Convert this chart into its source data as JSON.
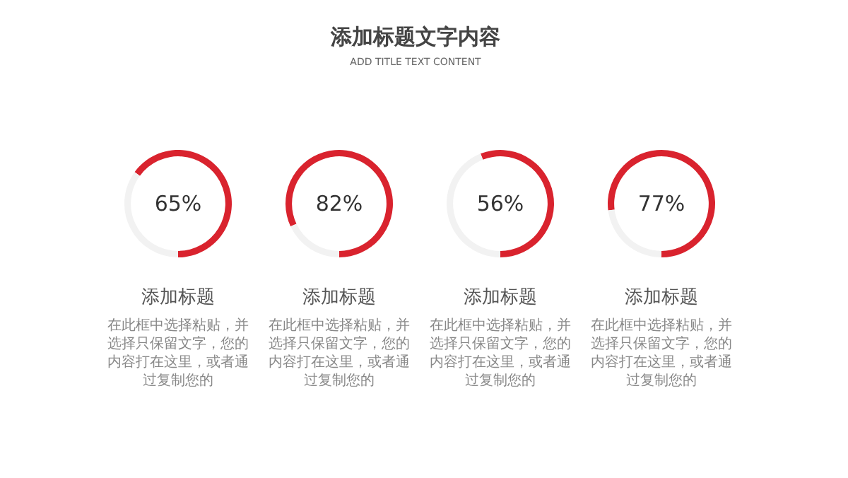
{
  "chart_data": [
    {
      "type": "other",
      "title": "添加标题文字内容",
      "subtitle": "ADD TITLE TEXT CONTENT"
    },
    {
      "type": "donut",
      "categories": [
        null,
        null
      ],
      "values": [
        65,
        35
      ],
      "colors": [
        "#d9232e",
        "#f2f2f2"
      ],
      "value_labels": [
        "65%",
        null
      ],
      "title": "添加标题",
      "annotations": [
        "在此框中选择粘贴，并选择只保留文字，您的内容打在这里，或者通过复制您的"
      ]
    },
    {
      "type": "donut",
      "categories": [
        null,
        null
      ],
      "values": [
        82,
        18
      ],
      "colors": [
        "#d9232e",
        "#f2f2f2"
      ],
      "value_labels": [
        "82%",
        null
      ],
      "title": "添加标题",
      "annotations": [
        "在此框中选择粘贴，并选择只保留文字，您的内容打在这里，或者通过复制您的"
      ]
    },
    {
      "type": "donut",
      "categories": [
        null,
        null
      ],
      "values": [
        56,
        44
      ],
      "colors": [
        "#d9232e",
        "#f2f2f2"
      ],
      "value_labels": [
        "56%",
        null
      ],
      "title": "添加标题",
      "annotations": [
        "在此框中选择粘贴，并选择只保留文字，您的内容打在这里，或者通过复制您的"
      ]
    },
    {
      "type": "donut",
      "categories": [
        null,
        null
      ],
      "values": [
        77,
        23
      ],
      "colors": [
        "#d9232e",
        "#f2f2f2"
      ],
      "value_labels": [
        "77%",
        null
      ],
      "title": "添加标题",
      "annotations": [
        "在此框中选择粘贴，并选择只保留文字，您的内容打在这里，或者通过复制您的"
      ]
    }
  ]
}
